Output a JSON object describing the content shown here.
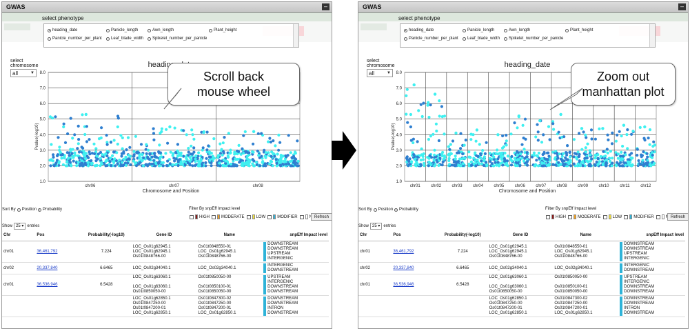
{
  "left": {
    "window_title": "GWAS",
    "select_phenotype_label": "select phenotype",
    "phenotypes": [
      {
        "label": "heading_date",
        "selected": true
      },
      {
        "label": "Panicle_length",
        "selected": false
      },
      {
        "label": "Awn_length",
        "selected": false
      },
      {
        "label": "Plant_height",
        "selected": false
      },
      {
        "label": "Panicle_number_per_plant",
        "selected": false
      },
      {
        "label": "Leaf_blade_width",
        "selected": false
      },
      {
        "label": "Spikelet_number_per_panicle",
        "selected": false
      }
    ],
    "select_chromosome_label": "select chromosome",
    "chromosome_value": "all",
    "plot_title": "heading_date",
    "ylabel": "Pvalue(-log10)",
    "xlabel": "Chromosome and Position",
    "y_ticks": [
      "8.0",
      "7.0",
      "6.0",
      "5.0",
      "4.0",
      "3.0",
      "2.0",
      "1.0"
    ],
    "x_ticks": [
      "chr06",
      "chr07",
      "chr08"
    ],
    "callout": [
      "Scroll back",
      "mouse wheel"
    ],
    "sort_by_label": "Sort By",
    "sort_options": [
      {
        "label": "Position",
        "selected": false
      },
      {
        "label": "Probability",
        "selected": true
      }
    ],
    "filter_title": "Filter By snpEff Impact level",
    "filters": [
      {
        "label": "HIGH",
        "color": "#8b1a1a"
      },
      {
        "label": "MODERATE",
        "color": "#f0a020"
      },
      {
        "label": "LOW",
        "color": "#f3e23a"
      },
      {
        "label": "MODIFIER",
        "color": "#2fb3d8"
      },
      {
        "label": "NONE",
        "color": "#ffffff"
      }
    ],
    "refresh_label": "Refresh",
    "show_label": "Show",
    "show_value": "25",
    "entries_label": "entries",
    "table_headers": [
      "Chr",
      "Pos",
      "Probability(-log10)",
      "Gene ID",
      "Name",
      "snpEff Impact level"
    ],
    "rows": [
      {
        "chr": "chr01",
        "pos": "36,461,792",
        "prob": "7.224",
        "genes": [
          "LOC_Os01g62945.1",
          "LOC_Os01g62945.1",
          "Os01t0848766-00"
        ],
        "names": [
          "Os01t0848550-01",
          "LOC_Os01g62945.1",
          "Os01t0848766-00"
        ],
        "effects": [
          "DOWNSTREAM",
          "DOWNSTREAM",
          "UPSTREAM",
          "INTERGENIC"
        ]
      },
      {
        "chr": "chr02",
        "pos": "20,337,840",
        "prob": "6.6465",
        "genes": [
          "LOC_Os02g34040.1"
        ],
        "names": [
          "LOC_Os02g34040.1"
        ],
        "effects": [
          "INTERGENIC",
          "DOWNSTREAM"
        ]
      },
      {
        "chr": "chr01",
        "pos": "36,536,946",
        "prob": "6.5428",
        "genes": [
          "LOC_Os01g63060.1",
          "",
          "LOC_Os01g63060.1",
          "Os01t0850050-00"
        ],
        "names": [
          "Os01t0850050-00",
          "",
          "Os01t0850100-01",
          "Os01t0850050-00"
        ],
        "effects": [
          "UPSTREAM",
          "INTERGENIC",
          "DOWNSTREAM",
          "DOWNSTREAM"
        ]
      },
      {
        "chr": "",
        "pos": "",
        "prob": "",
        "genes": [
          "LOC_Os01g62850.1",
          "Os01t0847250-00",
          "Os01t0847200-01",
          "LOC_Os01g62850.1"
        ],
        "names": [
          "Os01t0847300-02",
          "Os01t0847250-00",
          "Os01t0847200-01",
          "LOC_Os01g62850.1"
        ],
        "effects": [
          "DOWNSTREAM",
          "DOWNSTREAM",
          "INTRON",
          "DOWNSTREAM"
        ]
      }
    ]
  },
  "right": {
    "window_title": "GWAS",
    "select_phenotype_label": "select phenotype",
    "phenotypes": [
      {
        "label": "heading_date",
        "selected": true
      },
      {
        "label": "Panicle_length",
        "selected": false
      },
      {
        "label": "Awn_length",
        "selected": false
      },
      {
        "label": "Plant_height",
        "selected": false
      },
      {
        "label": "Panicle_number_per_plant",
        "selected": false
      },
      {
        "label": "Leaf_blade_width",
        "selected": false
      },
      {
        "label": "Spikelet_number_per_panicle",
        "selected": false
      }
    ],
    "select_chromosome_label": "select chromosome",
    "chromosome_value": "all",
    "plot_title": "heading_date",
    "ylabel": "Pvalue(-log10)",
    "xlabel": "Chromosome and Position",
    "y_ticks": [
      "8.0",
      "7.0",
      "6.0",
      "5.0",
      "4.0",
      "3.0",
      "2.0",
      "1.0"
    ],
    "x_ticks": [
      "chr01",
      "chr02",
      "chr03",
      "chr04",
      "chr05",
      "chr06",
      "chr07",
      "chr08",
      "chr09",
      "chr10",
      "chr11",
      "chr12"
    ],
    "callout": [
      "Zoom out",
      "manhattan plot"
    ],
    "sort_by_label": "Sort By",
    "sort_options": [
      {
        "label": "Position",
        "selected": false
      },
      {
        "label": "Probability",
        "selected": true
      }
    ],
    "filter_title": "Filter By snpEff Impact level",
    "filters": [
      {
        "label": "HIGH",
        "color": "#8b1a1a"
      },
      {
        "label": "MODERATE",
        "color": "#f0a020"
      },
      {
        "label": "LOW",
        "color": "#f3e23a"
      },
      {
        "label": "MODIFIER",
        "color": "#2fb3d8"
      },
      {
        "label": "NONE",
        "color": "#ffffff"
      }
    ],
    "refresh_label": "Refresh",
    "show_label": "Show",
    "show_value": "25",
    "entries_label": "entries",
    "table_headers": [
      "Chr",
      "Pos",
      "Probability(-log10)",
      "Gene ID",
      "Name",
      "snpEff Impact level"
    ],
    "rows": [
      {
        "chr": "chr01",
        "pos": "36,461,792",
        "prob": "7.224",
        "genes": [
          "LOC_Os01g62945.1",
          "LOC_Os01g62945.1",
          "Os01t0848766-00"
        ],
        "names": [
          "Os01t0848550-01",
          "LOC_Os01g62945.1",
          "Os01t0848766-00"
        ],
        "effects": [
          "DOWNSTREAM",
          "DOWNSTREAM",
          "UPSTREAM",
          "INTERGENIC"
        ]
      },
      {
        "chr": "chr02",
        "pos": "20,337,840",
        "prob": "6.6465",
        "genes": [
          "LOC_Os02g34040.1"
        ],
        "names": [
          "LOC_Os02g34040.1"
        ],
        "effects": [
          "INTERGENIC",
          "DOWNSTREAM"
        ]
      },
      {
        "chr": "chr01",
        "pos": "36,536,946",
        "prob": "6.5428",
        "genes": [
          "LOC_Os01g63060.1",
          "",
          "LOC_Os01g63060.1",
          "Os01t0850050-00"
        ],
        "names": [
          "Os01t0850050-00",
          "",
          "Os01t0850100-01",
          "Os01t0850050-00"
        ],
        "effects": [
          "UPSTREAM",
          "INTERGENIC",
          "DOWNSTREAM",
          "DOWNSTREAM"
        ]
      },
      {
        "chr": "",
        "pos": "",
        "prob": "",
        "genes": [
          "LOC_Os01g62850.1",
          "Os01t0847250-00",
          "Os01t0847200-01",
          "LOC_Os01g62850.1"
        ],
        "names": [
          "Os01t0847300-02",
          "Os01t0847250-00",
          "Os01t0847200-01",
          "LOC_Os01g62850.1"
        ],
        "effects": [
          "DOWNSTREAM",
          "DOWNSTREAM",
          "INTRON",
          "DOWNSTREAM"
        ]
      }
    ]
  },
  "chart_data": [
    {
      "type": "scatter",
      "title": "heading_date",
      "xlabel": "Chromosome and Position",
      "ylabel": "Pvalue(-log10)",
      "ylim": [
        1,
        8
      ],
      "x_ticks": [
        "chr06",
        "chr07",
        "chr08"
      ],
      "series": [
        {
          "values_note": "chr06 peak 5.3",
          "values": [
            5.3,
            4.5,
            4.2,
            3.8
          ]
        }
      ]
    },
    {
      "type": "scatter",
      "title": "heading_date",
      "xlabel": "Chromosome and Position",
      "ylabel": "Pvalue(-log10)",
      "ylim": [
        1,
        8
      ],
      "x_ticks": [
        "chr01",
        "chr02",
        "chr03",
        "chr04",
        "chr05",
        "chr06",
        "chr07",
        "chr08",
        "chr09",
        "chr10",
        "chr11",
        "chr12"
      ],
      "series": [
        {
          "values": [
            7.2,
            6.6,
            4.1,
            4.3,
            4.0,
            5.2,
            4.9,
            5.3,
            4.4,
            4.4,
            4.6,
            4.5
          ]
        }
      ]
    }
  ],
  "colors": {
    "point_light": "#3ff0f0",
    "point_dark": "#2f7fd0",
    "grid": "#9a9a9a",
    "arrow": "#000000"
  }
}
